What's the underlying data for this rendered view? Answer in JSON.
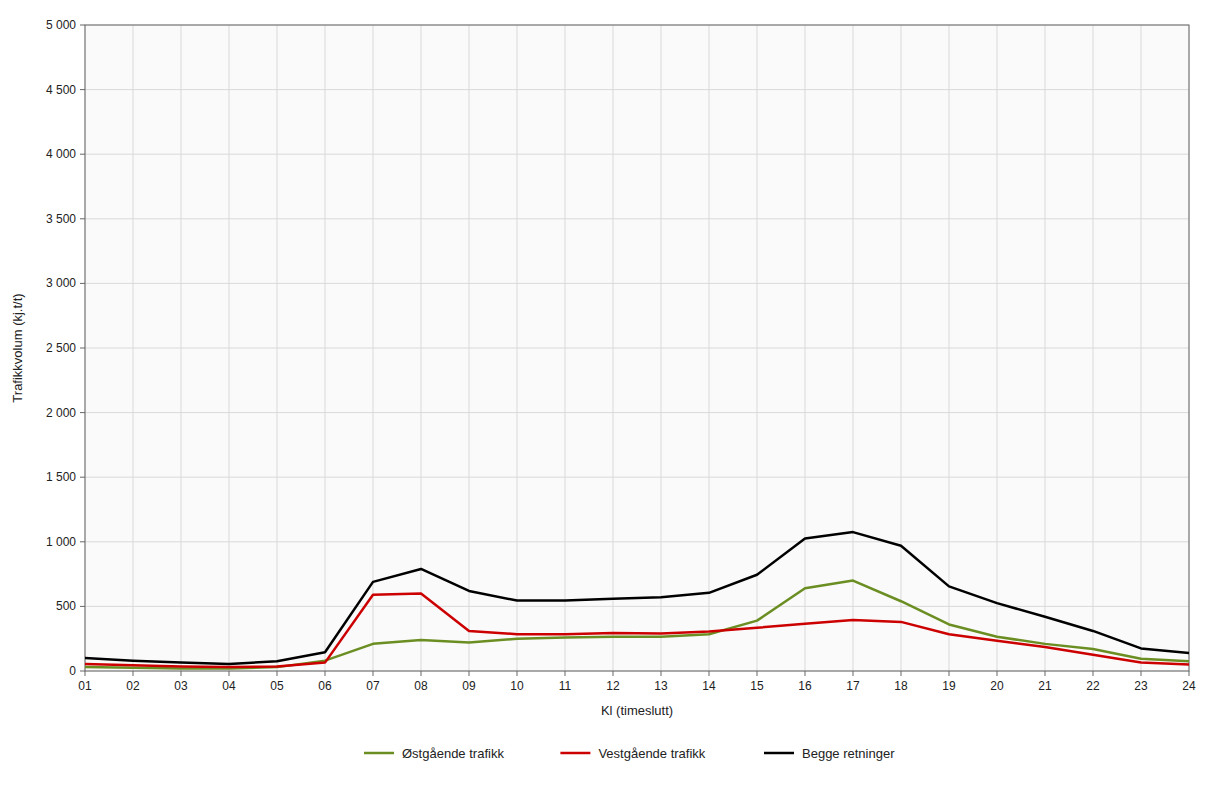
{
  "chart_data": {
    "type": "line",
    "xlabel": "Kl (timeslutt)",
    "ylabel": "Trafikkvolum (kj.t/t)",
    "x": [
      1,
      2,
      3,
      4,
      5,
      6,
      7,
      8,
      9,
      10,
      11,
      12,
      13,
      14,
      15,
      16,
      17,
      18,
      19,
      20,
      21,
      22,
      23,
      24
    ],
    "series": [
      {
        "name": "Østgående trafikk",
        "color": "#6b8e23",
        "values": [
          30,
          25,
          20,
          20,
          30,
          80,
          210,
          240,
          220,
          250,
          260,
          265,
          265,
          285,
          390,
          640,
          700,
          540,
          360,
          265,
          210,
          170,
          95,
          75
        ]
      },
      {
        "name": "Vestgående trafikk",
        "color": "#cc0000",
        "values": [
          55,
          45,
          35,
          30,
          35,
          65,
          590,
          600,
          310,
          285,
          285,
          295,
          290,
          305,
          335,
          365,
          395,
          380,
          285,
          235,
          185,
          125,
          65,
          50
        ]
      },
      {
        "name": "Begge retninger",
        "color": "#000000",
        "values": [
          100,
          80,
          65,
          55,
          75,
          145,
          690,
          790,
          620,
          545,
          545,
          560,
          570,
          605,
          745,
          1025,
          1075,
          970,
          655,
          525,
          420,
          310,
          175,
          140
        ]
      }
    ],
    "xlim": [
      1,
      24
    ],
    "xticks": [
      {
        "value": 1,
        "label": "01"
      },
      {
        "value": 2,
        "label": "02"
      },
      {
        "value": 3,
        "label": "03"
      },
      {
        "value": 4,
        "label": "04"
      },
      {
        "value": 5,
        "label": "05"
      },
      {
        "value": 6,
        "label": "06"
      },
      {
        "value": 7,
        "label": "07"
      },
      {
        "value": 8,
        "label": "08"
      },
      {
        "value": 9,
        "label": "09"
      },
      10,
      11,
      12,
      13,
      14,
      15,
      16,
      17,
      18,
      19,
      20,
      21,
      22,
      23,
      24
    ],
    "ylim": [
      0,
      5000
    ],
    "yticks": [
      0,
      500,
      {
        "value": 1000,
        "label": "1 000"
      },
      {
        "value": 1500,
        "label": "1 500"
      },
      {
        "value": 2000,
        "label": "2 000"
      },
      {
        "value": 2500,
        "label": "2 500"
      },
      {
        "value": 3000,
        "label": "3 000"
      },
      {
        "value": 3500,
        "label": "3 500"
      },
      {
        "value": 4000,
        "label": "4 000"
      },
      {
        "value": 4500,
        "label": "4 500"
      },
      {
        "value": 5000,
        "label": "5 000"
      }
    ],
    "grid": true,
    "legend": "bottom"
  }
}
